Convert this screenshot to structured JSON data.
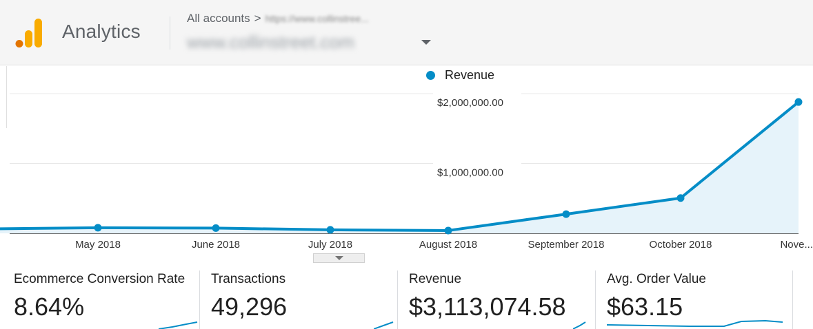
{
  "header": {
    "app_name": "Analytics",
    "breadcrumb_root": "All accounts",
    "breadcrumb_sep": ">",
    "breadcrumb_account": "https://www.collinstree...",
    "property_name": "www.collinstreet.com"
  },
  "colors": {
    "series": "#058dc7",
    "area_fill": "#e6f3fa",
    "logo_orange": "#f9ab00",
    "logo_dark_orange": "#e37400"
  },
  "chart_data": {
    "type": "area",
    "series": [
      {
        "name": "Revenue",
        "values": [
          65000,
          80000,
          75000,
          50000,
          40000,
          275000,
          505000,
          1880000
        ]
      }
    ],
    "x": [
      "",
      "May 2018",
      "June 2018",
      "July 2018",
      "August 2018",
      "September 2018",
      "October 2018",
      "Nove..."
    ],
    "ytick_labels": [
      "$2,000,000.00",
      "$1,000,000.00"
    ],
    "yticks": [
      2000000,
      1000000
    ],
    "ylim": [
      0,
      2000000
    ],
    "grid": true,
    "legend_placement": "top-center"
  },
  "metrics": [
    {
      "label": "Ecommerce Conversion Rate",
      "value": "8.64%"
    },
    {
      "label": "Transactions",
      "value": "49,296"
    },
    {
      "label": "Revenue",
      "value": "$3,113,074.58"
    },
    {
      "label": "Avg. Order Value",
      "value": "$63.15"
    }
  ]
}
